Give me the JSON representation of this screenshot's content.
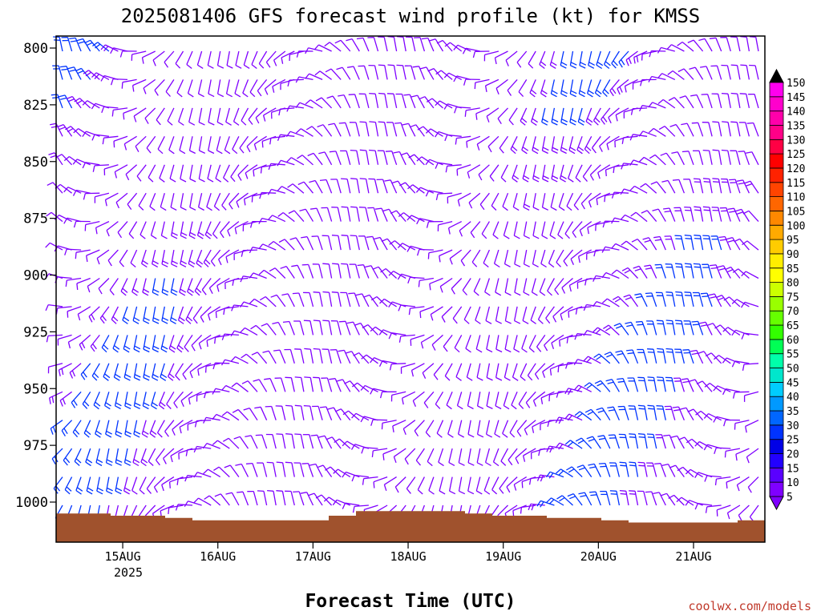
{
  "chart_data": {
    "type": "wind-barb-profile",
    "title": "2025081406 GFS forecast wind profile (kt) for KMSS",
    "xlabel": "Forecast Time (UTC)",
    "ylabel": "",
    "y_axis": {
      "scale": "pressure (inverted)",
      "range": [
        792,
        1022
      ],
      "ticks": [
        "800",
        "825",
        "850",
        "875",
        "900",
        "925",
        "950",
        "975",
        "1000"
      ]
    },
    "x_axis": {
      "range_days": [
        14.3,
        21.75
      ],
      "ticks": [
        "15AUG",
        "16AUG",
        "17AUG",
        "18AUG",
        "19AUG",
        "20AUG",
        "21AUG"
      ],
      "year_label": "2025"
    },
    "colorbar": {
      "levels": [
        "5",
        "10",
        "15",
        "20",
        "25",
        "30",
        "35",
        "40",
        "45",
        "50",
        "55",
        "60",
        "65",
        "70",
        "75",
        "80",
        "85",
        "90",
        "95",
        "100",
        "105",
        "110",
        "115",
        "120",
        "125",
        "130",
        "135",
        "140",
        "145",
        "150"
      ],
      "colors": [
        "#7f00ff",
        "#5a00ff",
        "#2200ff",
        "#0000e6",
        "#0033ff",
        "#0066ff",
        "#0099ff",
        "#00ccff",
        "#00e6cc",
        "#00ffaa",
        "#00ff55",
        "#33ff00",
        "#66ff00",
        "#99ff00",
        "#ccff00",
        "#ffff00",
        "#ffee00",
        "#ffcc00",
        "#ffaa00",
        "#ff8800",
        "#ff6600",
        "#ff4400",
        "#ff2200",
        "#ff0000",
        "#ff0044",
        "#ff0088",
        "#ff00aa",
        "#ff00cc",
        "#ff00ee"
      ],
      "under_color": "#7f00ff",
      "over_color": "#000000"
    },
    "terrain": {
      "color": "#a0522d",
      "pressure_hpa": [
        1005,
        1005,
        1006,
        1006,
        1007,
        1008,
        1008,
        1008,
        1008,
        1008,
        1006,
        1004,
        1004,
        1004,
        1004,
        1005,
        1006,
        1006,
        1007,
        1007,
        1008,
        1009,
        1009,
        1009,
        1009,
        1008
      ]
    },
    "barb_color_default": "#7f00ff",
    "barb_color_fast": "#0033ff"
  },
  "credit": "coolwx.com/models"
}
